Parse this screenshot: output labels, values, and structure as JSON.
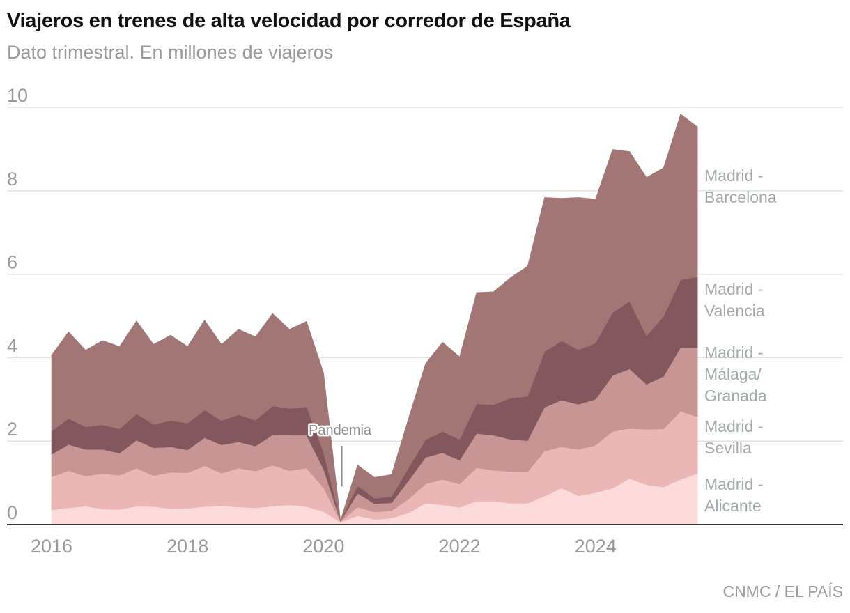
{
  "title": "Viajeros en trenes de alta velocidad por corredor de España",
  "subtitle": "Dato trimestral. En millones de viajeros",
  "source": "CNMC / EL PAÍS",
  "chart_data": {
    "type": "area",
    "stacked": true,
    "title": "Viajeros en trenes de alta velocidad por corredor de España",
    "subtitle": "Dato trimestral. En millones de viajeros",
    "xlabel": "",
    "ylabel": "",
    "ylim": [
      0,
      10
    ],
    "yticks": [
      "0",
      "2",
      "4",
      "6",
      "8",
      "10"
    ],
    "xticks": [
      "2016",
      "2018",
      "2020",
      "2022",
      "2024"
    ],
    "grid": true,
    "legend": "inline-right",
    "x": [
      "2016 T1",
      "2016 T2",
      "2016 T3",
      "2016 T4",
      "2017 T1",
      "2017 T2",
      "2017 T3",
      "2017 T4",
      "2018 T1",
      "2018 T2",
      "2018 T3",
      "2018 T4",
      "2019 T1",
      "2019 T2",
      "2019 T3",
      "2019 T4",
      "2020 T1",
      "2020 T2",
      "2020 T3",
      "2020 T4",
      "2021 T1",
      "2021 T2",
      "2021 T3",
      "2021 T4",
      "2022 T1",
      "2022 T2",
      "2022 T3",
      "2022 T4",
      "2023 T1",
      "2023 T2",
      "2023 T3",
      "2023 T4",
      "2024 T1",
      "2024 T2",
      "2024 T3",
      "2024 T4",
      "2025 T1",
      "2025 T2",
      "2025 T3"
    ],
    "series": [
      {
        "name": "Madrid - Alicante",
        "label_lines": [
          "Madrid -",
          "Alicante"
        ],
        "color": "#fcdbda",
        "values": [
          0.35,
          0.4,
          0.44,
          0.37,
          0.36,
          0.44,
          0.43,
          0.38,
          0.39,
          0.43,
          0.45,
          0.42,
          0.4,
          0.44,
          0.47,
          0.43,
          0.31,
          0.05,
          0.21,
          0.12,
          0.15,
          0.28,
          0.51,
          0.47,
          0.41,
          0.56,
          0.56,
          0.51,
          0.51,
          0.68,
          0.87,
          0.69,
          0.76,
          0.87,
          1.1,
          0.95,
          0.9,
          1.08,
          1.22
        ]
      },
      {
        "name": "Madrid - Sevilla",
        "label_lines": [
          "Madrid -",
          "Sevilla"
        ],
        "color": "#eab7b6",
        "values": [
          0.79,
          0.89,
          0.72,
          0.85,
          0.82,
          0.91,
          0.74,
          0.87,
          0.85,
          0.98,
          0.78,
          0.93,
          0.88,
          0.98,
          0.82,
          0.92,
          0.57,
          0.02,
          0.21,
          0.18,
          0.18,
          0.33,
          0.46,
          0.61,
          0.56,
          0.8,
          0.74,
          0.76,
          0.75,
          1.08,
          0.99,
          1.11,
          1.14,
          1.36,
          1.2,
          1.33,
          1.39,
          1.63,
          1.36
        ]
      },
      {
        "name": "Madrid - Málaga/Granada",
        "label_lines": [
          "Madrid -",
          "Málaga/",
          "Granada"
        ],
        "color": "#c89595",
        "values": [
          0.54,
          0.63,
          0.64,
          0.58,
          0.53,
          0.67,
          0.67,
          0.61,
          0.55,
          0.67,
          0.68,
          0.63,
          0.6,
          0.73,
          0.85,
          0.79,
          0.45,
          0.01,
          0.33,
          0.2,
          0.19,
          0.44,
          0.64,
          0.64,
          0.57,
          0.82,
          0.84,
          0.77,
          0.75,
          1.05,
          1.12,
          1.08,
          1.1,
          1.34,
          1.43,
          1.08,
          1.26,
          1.53,
          1.66
        ]
      },
      {
        "name": "Madrid - Valencia",
        "label_lines": [
          "Madrid -",
          "Valencia"
        ],
        "color": "#82585e",
        "values": [
          0.56,
          0.62,
          0.54,
          0.59,
          0.58,
          0.63,
          0.56,
          0.63,
          0.64,
          0.66,
          0.58,
          0.65,
          0.62,
          0.69,
          0.64,
          0.68,
          0.4,
          0.01,
          0.18,
          0.13,
          0.15,
          0.31,
          0.42,
          0.51,
          0.5,
          0.71,
          0.73,
          0.99,
          1.06,
          1.33,
          1.42,
          1.31,
          1.35,
          1.51,
          1.62,
          1.16,
          1.44,
          1.62,
          1.7
        ]
      },
      {
        "name": "Madrid - Barcelona",
        "label_lines": [
          "Madrid -",
          "Barcelona"
        ],
        "color": "#a37676",
        "values": [
          1.82,
          2.08,
          1.84,
          2.02,
          1.98,
          2.23,
          1.92,
          2.05,
          1.84,
          2.16,
          1.83,
          2.05,
          2.0,
          2.22,
          1.9,
          2.05,
          1.91,
          0.01,
          0.5,
          0.5,
          0.53,
          1.19,
          1.83,
          2.14,
          1.98,
          2.67,
          2.71,
          2.89,
          3.12,
          3.7,
          3.42,
          3.65,
          3.45,
          3.91,
          3.59,
          3.8,
          3.56,
          3.98,
          3.59
        ]
      }
    ],
    "annotations": [
      {
        "text": "Pandemia",
        "x": "2020 T2"
      }
    ]
  }
}
